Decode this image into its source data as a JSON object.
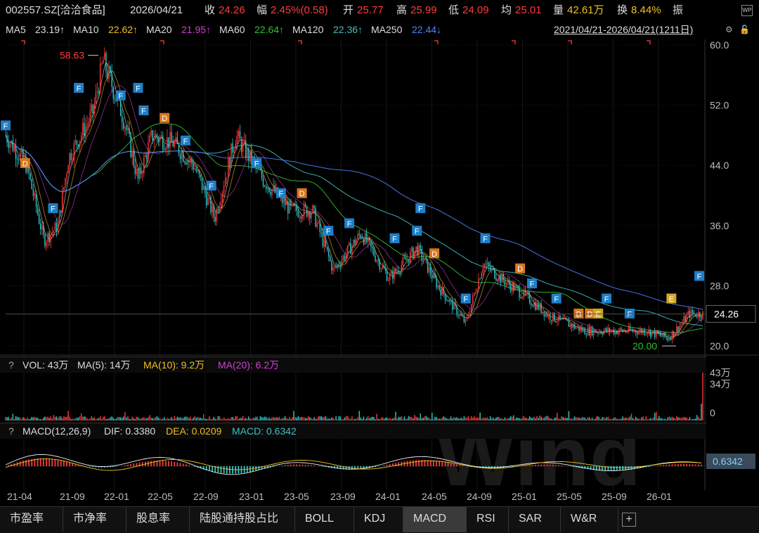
{
  "header": {
    "code": "002557.SZ[洽洽食品]",
    "date": "2026/04/21",
    "close_label": "收",
    "close": "24.26",
    "change_label": "幅",
    "change": "2.45%(0.58)",
    "open_label": "开",
    "open": "25.77",
    "high_label": "高",
    "high": "25.99",
    "low_label": "低",
    "low": "24.09",
    "avg_label": "均",
    "avg": "25.01",
    "vol_label": "量",
    "vol": "42.61万",
    "turnover_label": "换",
    "turnover": "8.44%",
    "amp_label": "振"
  },
  "ma_bar": {
    "items": [
      {
        "name": "MA5",
        "value": "23.19↑",
        "color": "#e0e0e0"
      },
      {
        "name": "MA10",
        "value": "22.62↑",
        "color": "#f0c020"
      },
      {
        "name": "MA20",
        "value": "21.95↑",
        "color": "#d040d0"
      },
      {
        "name": "MA60",
        "value": "22.64↑",
        "color": "#30c030"
      },
      {
        "name": "MA120",
        "value": "22.36↑",
        "color": "#40c0c0"
      },
      {
        "name": "MA250",
        "value": "22.44↓",
        "color": "#5080ff"
      }
    ],
    "range": "2021/04/21-2026/04/21(1211日)"
  },
  "vol_header": {
    "q": "?",
    "vol": "VOL: 43万",
    "ma5": "MA(5): 14万",
    "ma10": "MA(10): 9.2万",
    "ma20": "MA(20): 6.2万"
  },
  "macd_header": {
    "q": "?",
    "name": "MACD(12,26,9)",
    "dif": "DIF: 0.3380",
    "dea": "DEA: 0.0209",
    "macd": "MACD: 0.6342"
  },
  "tabs": [
    "市盈率",
    "市净率",
    "股息率",
    "陆股通持股占比",
    "BOLL",
    "KDJ",
    "MACD",
    "RSI",
    "SAR",
    "W&R"
  ],
  "active_tab": "MACD",
  "colors": {
    "up": "#ff3b3b",
    "down": "#2ec8c8",
    "accent": "#5080ff"
  },
  "chart_data": {
    "type": "line",
    "title": "002557.SZ[洽洽食品]",
    "x": [
      "21-04",
      "21-09",
      "22-01",
      "22-05",
      "22-09",
      "23-01",
      "23-05",
      "23-09",
      "24-01",
      "24-05",
      "24-09",
      "25-01",
      "25-05",
      "25-09",
      "26-01"
    ],
    "xlim": [
      "2021/04/21",
      "2026/04/21"
    ],
    "ylim": [
      20,
      60
    ],
    "yticks": [
      "60.0",
      "52.0",
      "44.0",
      "36.0",
      "28.0",
      "20.0"
    ],
    "price_key_points": [
      {
        "x": 0.0,
        "y": 48
      },
      {
        "x": 0.03,
        "y": 44
      },
      {
        "x": 0.055,
        "y": 34
      },
      {
        "x": 0.075,
        "y": 36
      },
      {
        "x": 0.09,
        "y": 45
      },
      {
        "x": 0.125,
        "y": 51
      },
      {
        "x": 0.14,
        "y": 58
      },
      {
        "x": 0.17,
        "y": 50
      },
      {
        "x": 0.19,
        "y": 42
      },
      {
        "x": 0.21,
        "y": 48
      },
      {
        "x": 0.24,
        "y": 47
      },
      {
        "x": 0.27,
        "y": 44
      },
      {
        "x": 0.3,
        "y": 37
      },
      {
        "x": 0.33,
        "y": 48
      },
      {
        "x": 0.37,
        "y": 42
      },
      {
        "x": 0.41,
        "y": 38
      },
      {
        "x": 0.44,
        "y": 38
      },
      {
        "x": 0.47,
        "y": 30
      },
      {
        "x": 0.51,
        "y": 35
      },
      {
        "x": 0.55,
        "y": 29
      },
      {
        "x": 0.59,
        "y": 33
      },
      {
        "x": 0.62,
        "y": 28
      },
      {
        "x": 0.66,
        "y": 23
      },
      {
        "x": 0.685,
        "y": 31
      },
      {
        "x": 0.71,
        "y": 29
      },
      {
        "x": 0.74,
        "y": 27
      },
      {
        "x": 0.78,
        "y": 24
      },
      {
        "x": 0.83,
        "y": 22
      },
      {
        "x": 0.88,
        "y": 22
      },
      {
        "x": 0.92,
        "y": 22
      },
      {
        "x": 0.95,
        "y": 21
      },
      {
        "x": 0.97,
        "y": 23
      },
      {
        "x": 0.98,
        "y": 24.26
      }
    ],
    "annotations": [
      {
        "text": "58.63",
        "y": 58.63,
        "kind": "high"
      },
      {
        "text": "20.00",
        "y": 20.0,
        "kind": "low"
      },
      {
        "text": "24.26",
        "y": 24.26,
        "kind": "last"
      }
    ],
    "markers": [
      {
        "label": "F",
        "x": 0.0,
        "y": 48
      },
      {
        "label": "D",
        "x": 0.028,
        "y": 43
      },
      {
        "label": "F",
        "x": 0.068,
        "y": 37
      },
      {
        "label": "F",
        "x": 0.105,
        "y": 53
      },
      {
        "label": "F",
        "x": 0.165,
        "y": 52
      },
      {
        "label": "F",
        "x": 0.19,
        "y": 53
      },
      {
        "label": "F",
        "x": 0.198,
        "y": 50
      },
      {
        "label": "D",
        "x": 0.228,
        "y": 49
      },
      {
        "label": "F",
        "x": 0.258,
        "y": 46
      },
      {
        "label": "F",
        "x": 0.295,
        "y": 40
      },
      {
        "label": "F",
        "x": 0.36,
        "y": 43
      },
      {
        "label": "F",
        "x": 0.395,
        "y": 39
      },
      {
        "label": "D",
        "x": 0.425,
        "y": 39
      },
      {
        "label": "F",
        "x": 0.463,
        "y": 34
      },
      {
        "label": "F",
        "x": 0.493,
        "y": 35
      },
      {
        "label": "F",
        "x": 0.558,
        "y": 33
      },
      {
        "label": "F",
        "x": 0.595,
        "y": 37
      },
      {
        "label": "F",
        "x": 0.59,
        "y": 34
      },
      {
        "label": "D",
        "x": 0.615,
        "y": 31
      },
      {
        "label": "F",
        "x": 0.66,
        "y": 25
      },
      {
        "label": "F",
        "x": 0.688,
        "y": 33
      },
      {
        "label": "D",
        "x": 0.738,
        "y": 29
      },
      {
        "label": "F",
        "x": 0.755,
        "y": 27
      },
      {
        "label": "F",
        "x": 0.79,
        "y": 25
      },
      {
        "label": "D",
        "x": 0.822,
        "y": 23
      },
      {
        "label": "D",
        "x": 0.838,
        "y": 23
      },
      {
        "label": "E",
        "x": 0.85,
        "y": 23
      },
      {
        "label": "F",
        "x": 0.862,
        "y": 25
      },
      {
        "label": "F",
        "x": 0.895,
        "y": 23
      },
      {
        "label": "E",
        "x": 0.955,
        "y": 25
      },
      {
        "label": "F",
        "x": 0.995,
        "y": 28
      }
    ],
    "series": [
      {
        "name": "MA5",
        "values": "23.19"
      },
      {
        "name": "MA10",
        "values": "22.62"
      },
      {
        "name": "MA20",
        "values": "21.95"
      },
      {
        "name": "MA60",
        "values": "22.64"
      },
      {
        "name": "MA120",
        "values": "22.36"
      },
      {
        "name": "MA250",
        "values": "22.44"
      }
    ],
    "volume": {
      "ylim": [
        0,
        43
      ],
      "yticks": [
        "43万",
        "34万",
        "0"
      ],
      "last": 43
    },
    "macd": {
      "last": 0.6342,
      "label": "0.6342"
    },
    "grid": true,
    "watermark": "Wind"
  }
}
